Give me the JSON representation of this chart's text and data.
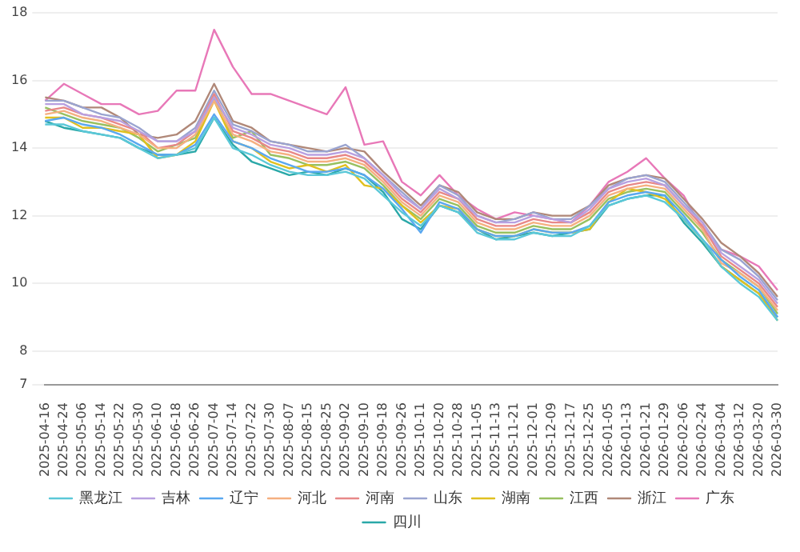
{
  "chart_data": {
    "type": "line",
    "categories": [
      "2025-04-16",
      "2025-04-24",
      "2025-05-06",
      "2025-05-14",
      "2025-05-22",
      "2025-05-30",
      "2025-06-10",
      "2025-06-18",
      "2025-06-26",
      "2025-07-04",
      "2025-07-14",
      "2025-07-22",
      "2025-07-30",
      "2025-08-07",
      "2025-08-15",
      "2025-08-25",
      "2025-09-02",
      "2025-09-10",
      "2025-09-18",
      "2025-09-26",
      "2025-10-11",
      "2025-10-20",
      "2025-10-28",
      "2025-11-05",
      "2025-11-13",
      "2025-11-21",
      "2025-12-01",
      "2025-12-09",
      "2025-12-17",
      "2025-12-25",
      "2026-01-05",
      "2026-01-13",
      "2026-01-21",
      "2026-01-29",
      "2026-02-06",
      "2026-02-24",
      "2026-03-04",
      "2026-03-12",
      "2026-03-20",
      "2026-03-30"
    ],
    "ylim": [
      7,
      18
    ],
    "yticks": [
      7,
      8,
      10,
      12,
      14,
      16,
      18
    ],
    "grid": "y",
    "legend": "bottom",
    "marker": "none",
    "line_style": "solid",
    "series": [
      {
        "name": "黑龙江",
        "color": "#5bc8d8",
        "values": [
          14.7,
          14.7,
          14.5,
          14.4,
          14.3,
          14.0,
          13.7,
          13.8,
          14.0,
          14.9,
          14.0,
          13.8,
          13.5,
          13.3,
          13.2,
          13.2,
          13.3,
          13.1,
          12.6,
          12.1,
          11.7,
          12.3,
          12.1,
          11.5,
          11.3,
          11.3,
          11.5,
          11.4,
          11.4,
          11.7,
          12.3,
          12.5,
          12.6,
          12.4,
          11.9,
          11.3,
          10.5,
          10.0,
          9.6,
          8.9
        ]
      },
      {
        "name": "吉林",
        "color": "#b8a0e0",
        "values": [
          15.3,
          15.3,
          15.0,
          14.9,
          14.8,
          14.5,
          14.2,
          14.2,
          14.5,
          15.5,
          14.6,
          14.4,
          14.1,
          14.0,
          13.8,
          13.8,
          13.9,
          13.7,
          13.2,
          12.6,
          12.2,
          12.8,
          12.5,
          12.0,
          11.8,
          11.8,
          12.0,
          11.9,
          11.8,
          12.2,
          12.8,
          13.0,
          13.1,
          12.9,
          12.3,
          11.8,
          10.9,
          10.5,
          10.1,
          9.4
        ]
      },
      {
        "name": "辽宁",
        "color": "#5aa8f0",
        "values": [
          14.8,
          14.9,
          14.7,
          14.6,
          14.4,
          14.1,
          13.8,
          13.8,
          14.1,
          15.0,
          14.2,
          14.0,
          13.7,
          13.5,
          13.3,
          13.3,
          13.4,
          13.2,
          12.8,
          12.2,
          11.5,
          12.4,
          12.2,
          11.6,
          11.4,
          11.4,
          11.6,
          11.5,
          11.5,
          11.7,
          12.4,
          12.6,
          12.7,
          12.6,
          12.0,
          11.3,
          10.7,
          10.2,
          9.8,
          9.0
        ]
      },
      {
        "name": "河北",
        "color": "#f5b080",
        "values": [
          15.0,
          15.1,
          14.9,
          14.8,
          14.6,
          14.4,
          14.0,
          14.0,
          14.4,
          15.4,
          14.4,
          14.2,
          13.9,
          13.8,
          13.6,
          13.6,
          13.7,
          13.5,
          13.0,
          12.4,
          12.0,
          12.6,
          12.4,
          11.8,
          11.6,
          11.6,
          11.8,
          11.7,
          11.7,
          12.0,
          12.6,
          12.8,
          12.9,
          12.8,
          12.2,
          11.6,
          10.6,
          10.3,
          9.9,
          9.2
        ]
      },
      {
        "name": "河南",
        "color": "#e88888",
        "values": [
          15.1,
          15.2,
          15.0,
          14.9,
          14.7,
          14.5,
          14.0,
          14.1,
          14.5,
          15.6,
          14.5,
          14.3,
          14.0,
          13.9,
          13.7,
          13.7,
          13.8,
          13.6,
          13.1,
          12.5,
          12.1,
          12.7,
          12.5,
          11.9,
          11.7,
          11.7,
          11.9,
          11.8,
          11.8,
          12.1,
          12.7,
          12.9,
          13.0,
          12.9,
          12.3,
          11.7,
          10.8,
          10.4,
          10.0,
          9.3
        ]
      },
      {
        "name": "山东",
        "color": "#9aa4d0",
        "values": [
          15.4,
          15.4,
          15.2,
          15.0,
          14.9,
          14.6,
          14.2,
          14.2,
          14.6,
          15.7,
          14.7,
          14.5,
          14.2,
          14.1,
          13.9,
          13.9,
          14.1,
          13.7,
          13.2,
          12.7,
          12.2,
          12.9,
          12.6,
          12.0,
          11.8,
          11.9,
          12.1,
          11.9,
          11.9,
          12.3,
          12.8,
          13.1,
          13.2,
          13.0,
          12.4,
          11.8,
          11.0,
          10.7,
          10.2,
          9.5
        ]
      },
      {
        "name": "湖南",
        "color": "#e0c020",
        "values": [
          14.9,
          14.9,
          14.6,
          14.6,
          14.5,
          14.4,
          13.7,
          13.8,
          14.2,
          15.4,
          14.2,
          14.0,
          13.6,
          13.4,
          13.5,
          13.3,
          13.5,
          12.9,
          12.8,
          12.3,
          11.8,
          12.3,
          12.2,
          11.6,
          11.4,
          11.4,
          11.6,
          11.5,
          11.5,
          11.6,
          12.4,
          12.8,
          12.7,
          12.5,
          11.9,
          11.3,
          10.5,
          10.1,
          9.7,
          8.9
        ]
      },
      {
        "name": "江西",
        "color": "#98c060",
        "values": [
          15.2,
          15.0,
          14.8,
          14.7,
          14.6,
          14.3,
          13.9,
          14.1,
          14.3,
          15.5,
          14.3,
          14.5,
          13.8,
          13.7,
          13.5,
          13.5,
          13.6,
          13.4,
          12.9,
          12.3,
          11.9,
          12.5,
          12.3,
          11.7,
          11.5,
          11.5,
          11.7,
          11.6,
          11.6,
          11.9,
          12.5,
          12.7,
          12.8,
          12.7,
          12.1,
          11.5,
          10.7,
          10.3,
          9.9,
          9.1
        ]
      },
      {
        "name": "浙江",
        "color": "#b08878",
        "values": [
          15.5,
          15.4,
          15.2,
          15.2,
          14.9,
          14.4,
          14.3,
          14.4,
          14.8,
          15.9,
          14.8,
          14.6,
          14.2,
          14.1,
          14.0,
          13.9,
          14.0,
          13.9,
          13.3,
          12.8,
          12.3,
          12.9,
          12.7,
          12.1,
          11.9,
          11.9,
          12.1,
          12.0,
          12.0,
          12.3,
          12.9,
          13.1,
          13.2,
          13.1,
          12.5,
          11.9,
          11.2,
          10.8,
          10.3,
          9.6
        ]
      },
      {
        "name": "广东",
        "color": "#e878b8",
        "values": [
          15.4,
          15.9,
          15.6,
          15.3,
          15.3,
          15.0,
          15.1,
          15.7,
          15.7,
          17.5,
          16.4,
          15.6,
          15.6,
          15.4,
          15.2,
          15.0,
          15.8,
          14.1,
          14.2,
          13.0,
          12.6,
          13.2,
          12.6,
          12.2,
          11.9,
          12.1,
          12.0,
          11.9,
          11.8,
          12.3,
          13.0,
          13.3,
          13.7,
          13.1,
          12.6,
          11.6,
          11.0,
          10.8,
          10.5,
          9.8
        ]
      },
      {
        "name": "四川",
        "color": "#2aa8a8",
        "values": [
          14.8,
          14.6,
          14.5,
          14.4,
          14.3,
          14.0,
          13.8,
          13.8,
          13.9,
          14.9,
          14.1,
          13.6,
          13.4,
          13.2,
          13.3,
          13.2,
          13.4,
          13.2,
          12.7,
          11.9,
          11.6,
          12.3,
          12.1,
          11.6,
          11.3,
          11.4,
          11.5,
          11.4,
          11.5,
          11.6,
          12.3,
          12.5,
          12.6,
          12.6,
          11.8,
          11.2,
          10.5,
          10.1,
          9.7,
          9.0
        ]
      }
    ]
  }
}
